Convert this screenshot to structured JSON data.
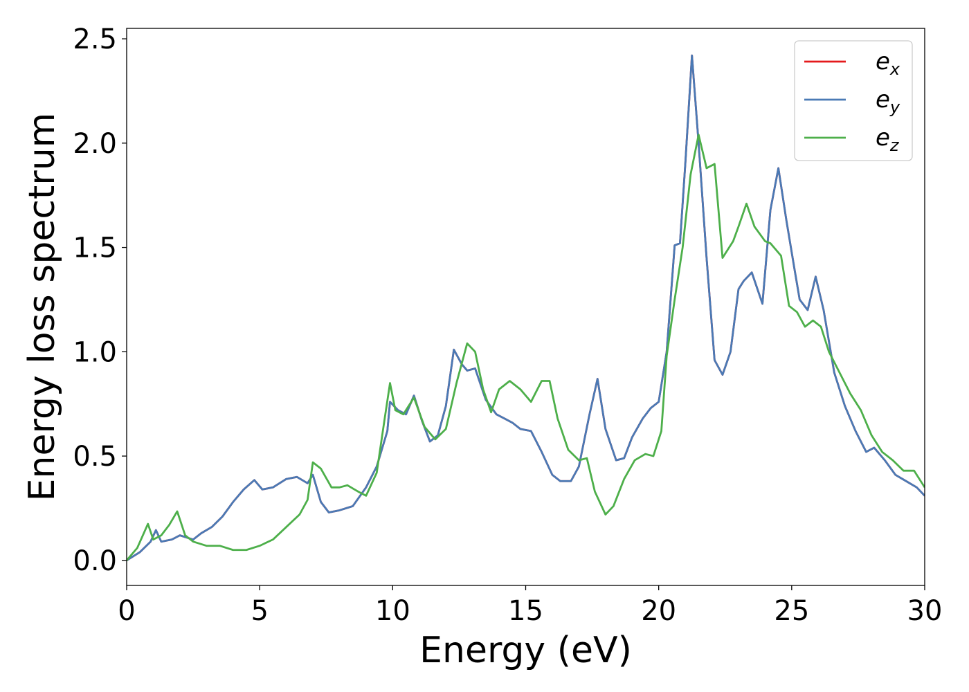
{
  "chart_data": {
    "type": "line",
    "title": "",
    "xlabel": "Energy (eV)",
    "ylabel": "Energy loss spectrum",
    "xlim": [
      0,
      30
    ],
    "ylim": [
      -0.12,
      2.55
    ],
    "xticks": [
      0,
      5,
      10,
      15,
      20,
      25,
      30
    ],
    "yticks": [
      0.0,
      0.5,
      1.0,
      1.5,
      2.0,
      2.5
    ],
    "xtick_labels": [
      "0",
      "5",
      "10",
      "15",
      "20",
      "25",
      "30"
    ],
    "ytick_labels": [
      "0.0",
      "0.5",
      "1.0",
      "1.5",
      "2.0",
      "2.5"
    ],
    "grid": false,
    "legend_position": "top-right",
    "series": [
      {
        "name": "e",
        "sub": "x",
        "color": "#e41a1c",
        "x": [
          0,
          0.5,
          0.9,
          1.1,
          1.3,
          1.7,
          2.0,
          2.5,
          2.8,
          3.2,
          3.6,
          4.0,
          4.4,
          4.8,
          5.1,
          5.5,
          6.0,
          6.4,
          6.8,
          7.0,
          7.3,
          7.6,
          8.0,
          8.5,
          9.0,
          9.4,
          9.8,
          9.9,
          10.2,
          10.5,
          10.8,
          11.1,
          11.4,
          11.7,
          12.0,
          12.3,
          12.6,
          12.8,
          13.1,
          13.5,
          13.9,
          14.2,
          14.5,
          14.8,
          15.2,
          15.6,
          16.0,
          16.3,
          16.7,
          17.0,
          17.4,
          17.7,
          18.0,
          18.4,
          18.7,
          19.0,
          19.4,
          19.7,
          20.0,
          20.3,
          20.6,
          20.8,
          21.0,
          21.25,
          21.5,
          21.8,
          22.1,
          22.4,
          22.7,
          23.0,
          23.2,
          23.5,
          23.9,
          24.2,
          24.5,
          24.8,
          25.1,
          25.3,
          25.6,
          25.9,
          26.2,
          26.6,
          27.0,
          27.4,
          27.8,
          28.1,
          28.5,
          28.9,
          29.3,
          29.7,
          30.0
        ],
        "y": [
          0.0,
          0.04,
          0.09,
          0.145,
          0.09,
          0.1,
          0.12,
          0.1,
          0.13,
          0.16,
          0.21,
          0.28,
          0.34,
          0.385,
          0.34,
          0.35,
          0.39,
          0.4,
          0.37,
          0.41,
          0.28,
          0.23,
          0.24,
          0.26,
          0.35,
          0.45,
          0.62,
          0.76,
          0.72,
          0.7,
          0.79,
          0.67,
          0.57,
          0.6,
          0.74,
          1.01,
          0.94,
          0.91,
          0.92,
          0.77,
          0.7,
          0.68,
          0.66,
          0.63,
          0.62,
          0.52,
          0.41,
          0.38,
          0.38,
          0.45,
          0.7,
          0.87,
          0.63,
          0.48,
          0.49,
          0.59,
          0.68,
          0.73,
          0.76,
          1.0,
          1.51,
          1.52,
          1.9,
          2.42,
          2.0,
          1.45,
          0.96,
          0.89,
          1.0,
          1.3,
          1.34,
          1.38,
          1.23,
          1.68,
          1.88,
          1.63,
          1.4,
          1.25,
          1.2,
          1.36,
          1.2,
          0.9,
          0.74,
          0.62,
          0.52,
          0.54,
          0.48,
          0.41,
          0.38,
          0.35,
          0.31
        ]
      },
      {
        "name": "e",
        "sub": "y",
        "color": "#4a7ab5",
        "x": [
          0,
          0.5,
          0.9,
          1.1,
          1.3,
          1.7,
          2.0,
          2.5,
          2.8,
          3.2,
          3.6,
          4.0,
          4.4,
          4.8,
          5.1,
          5.5,
          6.0,
          6.4,
          6.8,
          7.0,
          7.3,
          7.6,
          8.0,
          8.5,
          9.0,
          9.4,
          9.8,
          9.9,
          10.2,
          10.5,
          10.8,
          11.1,
          11.4,
          11.7,
          12.0,
          12.3,
          12.6,
          12.8,
          13.1,
          13.5,
          13.9,
          14.2,
          14.5,
          14.8,
          15.2,
          15.6,
          16.0,
          16.3,
          16.7,
          17.0,
          17.4,
          17.7,
          18.0,
          18.4,
          18.7,
          19.0,
          19.4,
          19.7,
          20.0,
          20.3,
          20.6,
          20.8,
          21.0,
          21.25,
          21.5,
          21.8,
          22.1,
          22.4,
          22.7,
          23.0,
          23.2,
          23.5,
          23.9,
          24.2,
          24.5,
          24.8,
          25.1,
          25.3,
          25.6,
          25.9,
          26.2,
          26.6,
          27.0,
          27.4,
          27.8,
          28.1,
          28.5,
          28.9,
          29.3,
          29.7,
          30.0
        ],
        "y": [
          0.0,
          0.04,
          0.09,
          0.145,
          0.09,
          0.1,
          0.12,
          0.1,
          0.13,
          0.16,
          0.21,
          0.28,
          0.34,
          0.385,
          0.34,
          0.35,
          0.39,
          0.4,
          0.37,
          0.41,
          0.28,
          0.23,
          0.24,
          0.26,
          0.35,
          0.45,
          0.62,
          0.76,
          0.72,
          0.7,
          0.79,
          0.67,
          0.57,
          0.6,
          0.74,
          1.01,
          0.94,
          0.91,
          0.92,
          0.77,
          0.7,
          0.68,
          0.66,
          0.63,
          0.62,
          0.52,
          0.41,
          0.38,
          0.38,
          0.45,
          0.7,
          0.87,
          0.63,
          0.48,
          0.49,
          0.59,
          0.68,
          0.73,
          0.76,
          1.0,
          1.51,
          1.52,
          1.9,
          2.42,
          2.0,
          1.45,
          0.96,
          0.89,
          1.0,
          1.3,
          1.34,
          1.38,
          1.23,
          1.68,
          1.88,
          1.63,
          1.4,
          1.25,
          1.2,
          1.36,
          1.2,
          0.9,
          0.74,
          0.62,
          0.52,
          0.54,
          0.48,
          0.41,
          0.38,
          0.35,
          0.31
        ]
      },
      {
        "name": "e",
        "sub": "z",
        "color": "#4daf4a",
        "x": [
          0,
          0.4,
          0.8,
          1.0,
          1.3,
          1.6,
          1.9,
          2.2,
          2.5,
          3.0,
          3.5,
          4.0,
          4.5,
          5.0,
          5.5,
          6.0,
          6.5,
          6.8,
          7.0,
          7.3,
          7.7,
          8.0,
          8.3,
          8.7,
          9.0,
          9.4,
          9.7,
          9.9,
          10.1,
          10.4,
          10.8,
          11.2,
          11.6,
          12.0,
          12.4,
          12.8,
          13.1,
          13.4,
          13.7,
          14.0,
          14.4,
          14.8,
          15.2,
          15.6,
          15.9,
          16.2,
          16.6,
          17.0,
          17.3,
          17.6,
          18.0,
          18.3,
          18.7,
          19.1,
          19.5,
          19.8,
          20.1,
          20.3,
          20.6,
          20.9,
          21.2,
          21.5,
          21.8,
          22.1,
          22.4,
          22.8,
          23.0,
          23.3,
          23.6,
          24.0,
          24.2,
          24.6,
          24.9,
          25.2,
          25.5,
          25.8,
          26.1,
          26.4,
          26.8,
          27.2,
          27.6,
          28.0,
          28.4,
          28.8,
          29.2,
          29.6,
          30.0
        ],
        "y": [
          0.0,
          0.06,
          0.175,
          0.1,
          0.12,
          0.17,
          0.235,
          0.12,
          0.09,
          0.07,
          0.07,
          0.05,
          0.05,
          0.07,
          0.1,
          0.16,
          0.22,
          0.29,
          0.47,
          0.44,
          0.35,
          0.35,
          0.36,
          0.33,
          0.31,
          0.42,
          0.68,
          0.85,
          0.72,
          0.7,
          0.78,
          0.64,
          0.58,
          0.63,
          0.85,
          1.04,
          1.0,
          0.82,
          0.71,
          0.82,
          0.86,
          0.82,
          0.76,
          0.86,
          0.86,
          0.68,
          0.53,
          0.48,
          0.49,
          0.33,
          0.22,
          0.26,
          0.39,
          0.48,
          0.51,
          0.5,
          0.62,
          0.98,
          1.25,
          1.5,
          1.85,
          2.04,
          1.88,
          1.9,
          1.45,
          1.53,
          1.6,
          1.71,
          1.6,
          1.53,
          1.52,
          1.46,
          1.22,
          1.19,
          1.12,
          1.15,
          1.12,
          1.0,
          0.9,
          0.8,
          0.72,
          0.6,
          0.52,
          0.48,
          0.43,
          0.43,
          0.35
        ]
      }
    ]
  }
}
